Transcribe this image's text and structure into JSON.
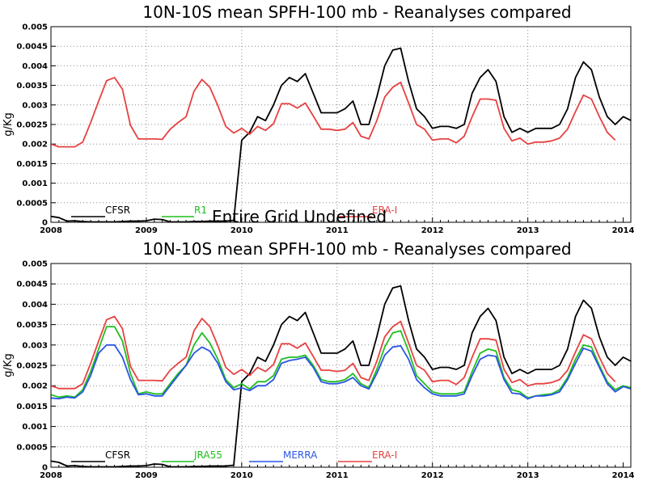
{
  "overlay_text": "Entire Grid Undefined",
  "chart_data": [
    {
      "type": "line",
      "title": "10N-10S mean SPFH-100 mb - Reanalyses compared",
      "ylabel": "g/Kg",
      "xlabel": "",
      "xlim": [
        2008.0,
        2014.08
      ],
      "ylim": [
        0,
        0.005
      ],
      "x_ticks": [
        "2008",
        "2009",
        "2010",
        "2011",
        "2012",
        "2013",
        "2014"
      ],
      "y_ticks": [
        "0",
        "0.0005",
        "0.001",
        "0.0015",
        "0.002",
        "0.0025",
        "0.003",
        "0.0035",
        "0.004",
        "0.0045",
        "0.005"
      ],
      "grid": true,
      "legend_position": "bottom",
      "series": [
        {
          "name": "CFSR",
          "color": "#000000",
          "start": 2008.0,
          "values": [
            0.00015,
            0.00012,
            3e-05,
            4e-05,
            2e-05,
            1e-05,
            1e-05,
            1e-05,
            1e-05,
            2e-05,
            3e-05,
            3e-05,
            4e-05,
            8e-05,
            7e-05,
            1e-05,
            1e-05,
            1e-05,
            2e-05,
            2e-05,
            3e-05,
            3e-05,
            3e-05,
            5e-05,
            0.0021,
            0.0023,
            0.0027,
            0.0026,
            0.003,
            0.0035,
            0.0037,
            0.0036,
            0.0038,
            0.0033,
            0.0028,
            0.0028,
            0.0028,
            0.0029,
            0.0031,
            0.0025,
            0.0025,
            0.0032,
            0.004,
            0.0044,
            0.00445,
            0.0036,
            0.0029,
            0.0027,
            0.0024,
            0.00245,
            0.00245,
            0.0024,
            0.0025,
            0.0033,
            0.0037,
            0.0039,
            0.0036,
            0.0027,
            0.0023,
            0.0024,
            0.0023,
            0.0024,
            0.0024,
            0.0024,
            0.0025,
            0.0029,
            0.0037,
            0.0041,
            0.0039,
            0.0032,
            0.0027,
            0.0025,
            0.0027,
            0.0026
          ]
        },
        {
          "name": "R1",
          "color": "#1fbf1f",
          "start": 2008.0,
          "values": []
        },
        {
          "name": "ERA-I",
          "color": "#e84141",
          "start": 2008.0,
          "values": [
            0.002,
            0.00193,
            0.00193,
            0.00193,
            0.00205,
            0.00255,
            0.0031,
            0.00362,
            0.0037,
            0.0034,
            0.00248,
            0.00213,
            0.00213,
            0.00213,
            0.00212,
            0.00238,
            0.00255,
            0.0027,
            0.00335,
            0.00365,
            0.00345,
            0.00298,
            0.00245,
            0.00228,
            0.0024,
            0.00225,
            0.00245,
            0.00235,
            0.00252,
            0.00303,
            0.00303,
            0.00292,
            0.00305,
            0.00272,
            0.00238,
            0.00238,
            0.00235,
            0.00238,
            0.00255,
            0.0022,
            0.00213,
            0.0026,
            0.0032,
            0.00345,
            0.00358,
            0.00305,
            0.0025,
            0.00238,
            0.0021,
            0.00213,
            0.00213,
            0.00203,
            0.0022,
            0.0027,
            0.00315,
            0.00315,
            0.00312,
            0.0024,
            0.00208,
            0.00215,
            0.002,
            0.00205,
            0.00205,
            0.00208,
            0.00215,
            0.00238,
            0.00283,
            0.00325,
            0.00315,
            0.0027,
            0.0023,
            0.0021
          ]
        }
      ]
    },
    {
      "type": "line",
      "title": "10N-10S mean SPFH-100 mb - Reanalyses compared",
      "ylabel": "g/Kg",
      "xlabel": "",
      "xlim": [
        2008.0,
        2014.08
      ],
      "ylim": [
        0,
        0.005
      ],
      "x_ticks": [
        "2008",
        "2009",
        "2010",
        "2011",
        "2012",
        "2013",
        "2014"
      ],
      "y_ticks": [
        "0",
        "0.0005",
        "0.001",
        "0.0015",
        "0.002",
        "0.0025",
        "0.003",
        "0.0035",
        "0.004",
        "0.0045",
        "0.005"
      ],
      "grid": true,
      "legend_position": "bottom",
      "series": [
        {
          "name": "CFSR",
          "color": "#000000",
          "start": 2008.0,
          "values": [
            0.00015,
            0.00012,
            3e-05,
            4e-05,
            2e-05,
            1e-05,
            1e-05,
            1e-05,
            1e-05,
            2e-05,
            3e-05,
            3e-05,
            4e-05,
            8e-05,
            7e-05,
            1e-05,
            1e-05,
            1e-05,
            2e-05,
            2e-05,
            3e-05,
            3e-05,
            3e-05,
            5e-05,
            0.0021,
            0.0023,
            0.0027,
            0.0026,
            0.003,
            0.0035,
            0.0037,
            0.0036,
            0.0038,
            0.0033,
            0.0028,
            0.0028,
            0.0028,
            0.0029,
            0.0031,
            0.0025,
            0.0025,
            0.0032,
            0.004,
            0.0044,
            0.00445,
            0.0036,
            0.0029,
            0.0027,
            0.0024,
            0.00245,
            0.00245,
            0.0024,
            0.0025,
            0.0033,
            0.0037,
            0.0039,
            0.0036,
            0.0027,
            0.0023,
            0.0024,
            0.0023,
            0.0024,
            0.0024,
            0.0024,
            0.0025,
            0.0029,
            0.0037,
            0.0041,
            0.0039,
            0.0032,
            0.0027,
            0.0025,
            0.0027,
            0.0026
          ]
        },
        {
          "name": "JRA55",
          "color": "#1fbf1f",
          "start": 2008.0,
          "values": [
            0.00178,
            0.00172,
            0.00175,
            0.00172,
            0.0019,
            0.00235,
            0.0029,
            0.00345,
            0.00345,
            0.0031,
            0.0023,
            0.0018,
            0.00185,
            0.0018,
            0.0018,
            0.00205,
            0.0023,
            0.0025,
            0.003,
            0.0033,
            0.00305,
            0.00265,
            0.00215,
            0.00195,
            0.00205,
            0.00192,
            0.0021,
            0.0021,
            0.00225,
            0.00265,
            0.0027,
            0.0027,
            0.00275,
            0.0025,
            0.00215,
            0.0021,
            0.0021,
            0.00215,
            0.0023,
            0.00205,
            0.00195,
            0.0024,
            0.00295,
            0.0033,
            0.00335,
            0.00285,
            0.00225,
            0.00205,
            0.00185,
            0.0018,
            0.0018,
            0.0018,
            0.00185,
            0.00235,
            0.0028,
            0.0029,
            0.00285,
            0.0022,
            0.0019,
            0.00185,
            0.0017,
            0.00175,
            0.00178,
            0.0018,
            0.0019,
            0.0022,
            0.00265,
            0.003,
            0.00295,
            0.0025,
            0.0021,
            0.0019,
            0.002,
            0.00195
          ]
        },
        {
          "name": "MERRA",
          "color": "#2b55e6",
          "start": 2008.0,
          "values": [
            0.0017,
            0.00168,
            0.00172,
            0.0017,
            0.00185,
            0.00225,
            0.0028,
            0.003,
            0.003,
            0.0027,
            0.00215,
            0.00178,
            0.0018,
            0.00175,
            0.00175,
            0.002,
            0.00225,
            0.0025,
            0.0028,
            0.00295,
            0.00285,
            0.00255,
            0.0021,
            0.0019,
            0.00195,
            0.00188,
            0.002,
            0.002,
            0.00215,
            0.00255,
            0.00262,
            0.00265,
            0.0027,
            0.00245,
            0.0021,
            0.00205,
            0.00205,
            0.0021,
            0.0022,
            0.002,
            0.00192,
            0.0023,
            0.00275,
            0.00295,
            0.00298,
            0.00265,
            0.00215,
            0.00195,
            0.0018,
            0.00175,
            0.00175,
            0.00175,
            0.0018,
            0.00225,
            0.00265,
            0.00275,
            0.00272,
            0.00215,
            0.00182,
            0.0018,
            0.00168,
            0.00175,
            0.00175,
            0.00178,
            0.00185,
            0.00215,
            0.00255,
            0.00292,
            0.00285,
            0.00245,
            0.00205,
            0.00185,
            0.00198,
            0.00192
          ]
        },
        {
          "name": "ERA-I",
          "color": "#e84141",
          "start": 2008.0,
          "values": [
            0.002,
            0.00193,
            0.00193,
            0.00193,
            0.00205,
            0.00255,
            0.0031,
            0.00362,
            0.0037,
            0.0034,
            0.00248,
            0.00213,
            0.00213,
            0.00213,
            0.00212,
            0.00238,
            0.00255,
            0.0027,
            0.00335,
            0.00365,
            0.00345,
            0.00298,
            0.00245,
            0.00228,
            0.0024,
            0.00225,
            0.00245,
            0.00235,
            0.00252,
            0.00303,
            0.00303,
            0.00292,
            0.00305,
            0.00272,
            0.00238,
            0.00238,
            0.00235,
            0.00238,
            0.00255,
            0.0022,
            0.00213,
            0.0026,
            0.0032,
            0.00345,
            0.00358,
            0.00305,
            0.0025,
            0.00238,
            0.0021,
            0.00213,
            0.00213,
            0.00203,
            0.0022,
            0.0027,
            0.00315,
            0.00315,
            0.00312,
            0.0024,
            0.00208,
            0.00215,
            0.002,
            0.00205,
            0.00205,
            0.00208,
            0.00215,
            0.00238,
            0.00283,
            0.00325,
            0.00315,
            0.0027,
            0.0023,
            0.0021
          ]
        }
      ]
    }
  ]
}
